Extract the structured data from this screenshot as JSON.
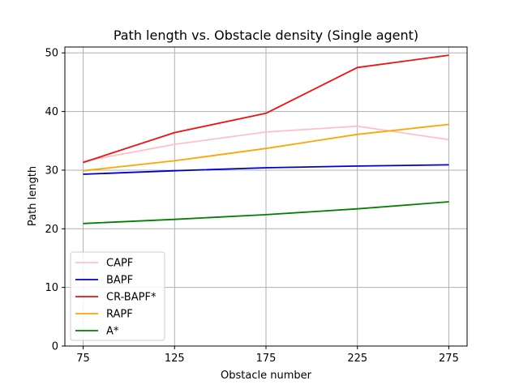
{
  "chart_data": {
    "type": "line",
    "title": "Path length vs. Obstacle density (Single agent)",
    "xlabel": "Obstacle number",
    "ylabel": "Path length",
    "x": [
      75,
      125,
      175,
      225,
      275
    ],
    "xlim": [
      65,
      285
    ],
    "ylim": [
      0,
      51
    ],
    "xticks": [
      75,
      125,
      175,
      225,
      275
    ],
    "yticks": [
      0,
      10,
      20,
      30,
      40,
      50
    ],
    "grid": true,
    "legend_position": "lower-left",
    "series": [
      {
        "name": "CAPF",
        "color": "#ffc0cb",
        "values": [
          31.5,
          34.4,
          36.5,
          37.5,
          35.2
        ]
      },
      {
        "name": "BAPF",
        "color": "#0000cd",
        "values": [
          29.3,
          29.9,
          30.4,
          30.7,
          30.9
        ]
      },
      {
        "name": "CR-BAPF*",
        "color": "#ee1111",
        "values": [
          31.3,
          36.4,
          39.7,
          47.5,
          49.6
        ]
      },
      {
        "name": "RAPF",
        "color": "#ffa500",
        "values": [
          29.9,
          31.6,
          33.7,
          36.1,
          37.8
        ]
      },
      {
        "name": "A*",
        "color": "#008000",
        "values": [
          20.9,
          21.6,
          22.4,
          23.4,
          24.6
        ]
      }
    ]
  }
}
